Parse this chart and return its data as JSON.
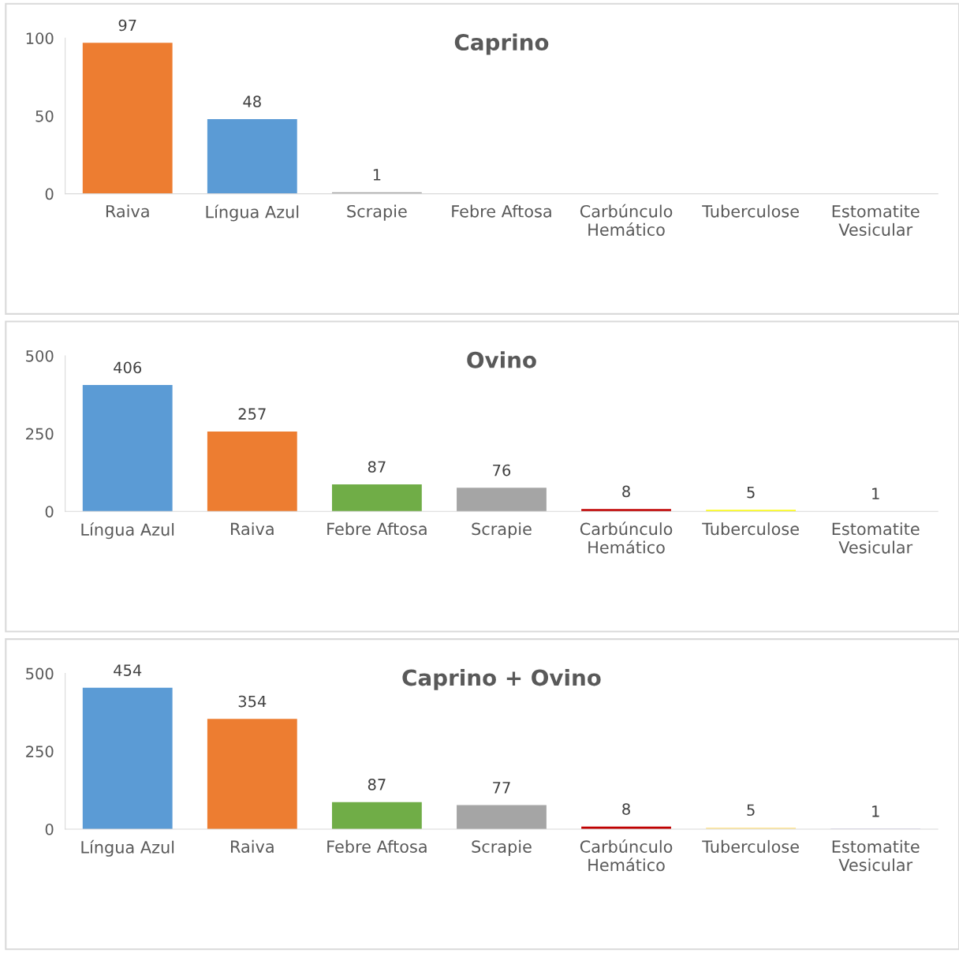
{
  "chart_data": [
    {
      "type": "bar",
      "title": "Caprino",
      "categories": [
        "Raiva",
        "Língua Azul",
        "Scrapie",
        "Febre Aftosa",
        "Carbúnculo\nHemático",
        "Tuberculose",
        "Estomatite\nVesicular"
      ],
      "values": [
        97,
        48,
        1,
        0,
        0,
        0,
        0
      ],
      "colors": [
        "#ed7d31",
        "#5b9bd5",
        "#a5a5a5",
        "#70ad47",
        "#c00000",
        "#ffff00",
        "#b4a7d6"
      ],
      "value_labels": [
        "97",
        "48",
        "1",
        null,
        null,
        null,
        null
      ],
      "ylim": [
        0,
        100
      ],
      "yticks": [
        0,
        50,
        100
      ],
      "grid": false
    },
    {
      "type": "bar",
      "title": "Ovino",
      "categories": [
        "Língua Azul",
        "Raiva",
        "Febre Aftosa",
        "Scrapie",
        "Carbúnculo\nHemático",
        "Tuberculose",
        "Estomatite\nVesicular"
      ],
      "values": [
        406,
        257,
        87,
        76,
        8,
        5,
        1
      ],
      "colors": [
        "#5b9bd5",
        "#ed7d31",
        "#70ad47",
        "#a5a5a5",
        "#c00000",
        "#ffff00",
        "#b4a7d6"
      ],
      "data_labels": true,
      "ylim": [
        0,
        500
      ],
      "yticks": [
        0,
        250,
        500
      ],
      "grid": false
    },
    {
      "type": "bar",
      "title": "Caprino + Ovino",
      "categories": [
        "Língua Azul",
        "Raiva",
        "Febre Aftosa",
        "Scrapie",
        "Carbúnculo\nHemático",
        "Tuberculose",
        "Estomatite\nVesicular"
      ],
      "values": [
        454,
        354,
        87,
        77,
        8,
        5,
        1
      ],
      "colors": [
        "#5b9bd5",
        "#ed7d31",
        "#70ad47",
        "#a5a5a5",
        "#c00000",
        "#ffe699",
        "#b4a7d6"
      ],
      "data_labels": true,
      "ylim": [
        0,
        500
      ],
      "yticks": [
        0,
        250,
        500
      ],
      "grid": false
    }
  ]
}
